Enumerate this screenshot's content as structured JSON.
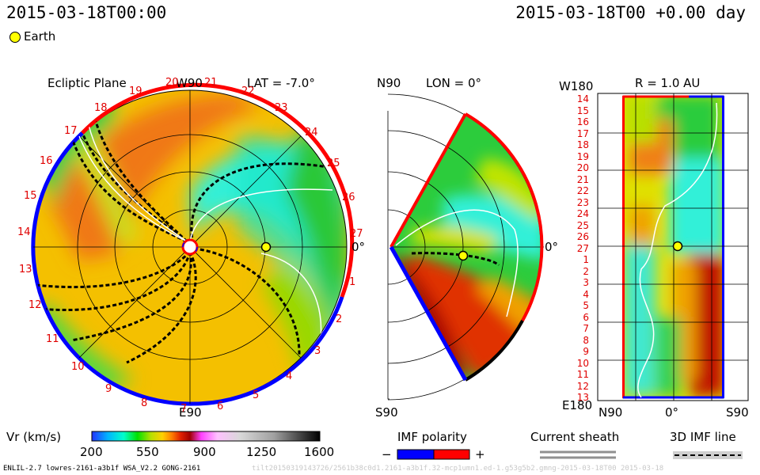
{
  "header": {
    "timestamp_left": "2015-03-18T00:00",
    "timestamp_right": "2015-03-18T00 +0.00 day"
  },
  "legend": {
    "earth_label": "Earth",
    "earth_color": "#ffff00"
  },
  "ecliptic": {
    "title": "Ecliptic Plane",
    "lat_label": "LAT = -7.0°",
    "top_label": "W90",
    "bottom_label": "E90",
    "right_label": "0°",
    "carrington": [
      "1",
      "2",
      "3",
      "4",
      "5",
      "6",
      "7",
      "8",
      "9",
      "10",
      "11",
      "12",
      "13",
      "14",
      "15",
      "16",
      "17",
      "18",
      "19",
      "20",
      "21",
      "22",
      "23",
      "24",
      "25",
      "26",
      "27"
    ]
  },
  "meridional": {
    "lon_label": "LON = 0°",
    "top_label": "N90",
    "bottom_label": "S90",
    "right_label": "0°"
  },
  "shell": {
    "title": "R = 1.0 AU",
    "top_left": "W180",
    "bottom_left": "E180",
    "x_labels": [
      "N90",
      "0°",
      "S90"
    ],
    "y_labels": [
      "14",
      "15",
      "16",
      "17",
      "18",
      "19",
      "20",
      "21",
      "22",
      "23",
      "24",
      "25",
      "26",
      "27",
      "1",
      "2",
      "3",
      "4",
      "5",
      "6",
      "7",
      "8",
      "9",
      "10",
      "11",
      "12",
      "13"
    ]
  },
  "colorbar": {
    "label": "Vr (km/s)",
    "ticks": [
      "200",
      "550",
      "900",
      "1250",
      "1600"
    ],
    "colors": [
      "#2233ff",
      "#00b4ff",
      "#00ffcc",
      "#00e000",
      "#b8e000",
      "#ffd000",
      "#ff8000",
      "#e02000",
      "#a00000",
      "#ff40ff",
      "#ffc0ff",
      "#d8d8d8",
      "#a0a0a0",
      "#505050",
      "#000000"
    ]
  },
  "imf": {
    "title": "IMF polarity",
    "minus": "−",
    "plus": "+",
    "neg_color": "#0000ff",
    "pos_color": "#ff0000"
  },
  "sheath": {
    "title": "Current sheath"
  },
  "imf3d": {
    "title": "3D IMF line"
  },
  "footer": {
    "left": "ENLIL-2.7 lowres-2161-a3b1f WSA_V2.2 GONG-2161",
    "right": "tilt20150319143726/2561b38c0d1.2161-a3b1f.32-mcp1umn1.ed-1.g53g5b2.gmng-2015-03-18T00   2015-03-18"
  }
}
